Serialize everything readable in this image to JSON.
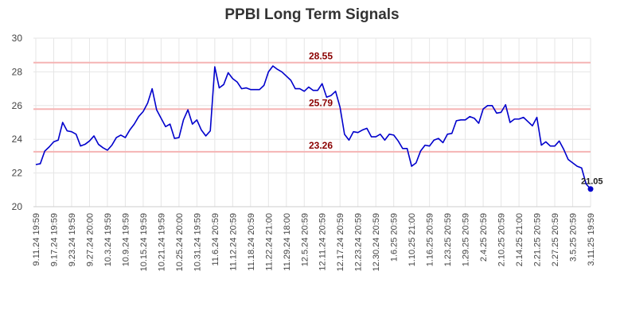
{
  "chart_data": {
    "type": "line",
    "title": "PPBI Long Term Signals",
    "ylim": [
      20,
      30
    ],
    "yticks": [
      20,
      22,
      24,
      26,
      28,
      30
    ],
    "grid": true,
    "xtick_labels": [
      "9.11.24 19:59",
      "9.17.24 19:59",
      "9.23.24 19:59",
      "9.27.24 20:00",
      "10.3.24 19:59",
      "10.9.24 19:59",
      "10.15.24 19:59",
      "10.21.24 19:59",
      "10.25.24 20:00",
      "10.31.24 19:59",
      "11.6.24 20:59",
      "11.12.24 20:59",
      "11.18.24 20:59",
      "11.22.24 21:00",
      "11.29.24 18:00",
      "12.5.24 20:59",
      "12.11.24 20:59",
      "12.17.24 20:59",
      "12.23.24 20:59",
      "12.30.24 20:59",
      "1.6.25 20:59",
      "1.10.25 21:00",
      "1.16.25 20:59",
      "1.23.25 20:59",
      "1.29.25 20:59",
      "2.4.25 20:59",
      "2.10.25 20:59",
      "2.14.25 21:00",
      "2.21.25 20:59",
      "2.27.25 20:59",
      "3.5.25 20:59",
      "3.11.25 19:59"
    ],
    "reference_lines": [
      {
        "label": "28.55",
        "value": 28.55
      },
      {
        "label": "25.79",
        "value": 25.79
      },
      {
        "label": "23.26",
        "value": 23.26
      }
    ],
    "last_value_label": "21.05",
    "series": [
      {
        "color": "#0000cc",
        "values": [
          22.5,
          22.55,
          23.3,
          23.55,
          23.85,
          23.95,
          25.0,
          24.5,
          24.45,
          24.3,
          23.6,
          23.7,
          23.9,
          24.2,
          23.7,
          23.5,
          23.35,
          23.65,
          24.1,
          24.25,
          24.1,
          24.55,
          24.9,
          25.35,
          25.65,
          26.15,
          27.0,
          25.75,
          25.25,
          24.75,
          24.9,
          24.05,
          24.1,
          25.15,
          25.75,
          24.9,
          25.15,
          24.55,
          24.2,
          24.5,
          28.3,
          27.05,
          27.25,
          27.95,
          27.6,
          27.4,
          27.0,
          27.05,
          26.95,
          26.95,
          26.95,
          27.2,
          28.0,
          28.35,
          28.15,
          28.0,
          27.75,
          27.5,
          27.0,
          27.0,
          26.85,
          27.1,
          26.9,
          26.9,
          27.3,
          26.5,
          26.6,
          26.85,
          25.9,
          24.3,
          23.95,
          24.45,
          24.4,
          24.55,
          24.65,
          24.15,
          24.15,
          24.3,
          23.95,
          24.3,
          24.25,
          23.9,
          23.45,
          23.45,
          22.4,
          22.6,
          23.3,
          23.65,
          23.6,
          23.95,
          24.05,
          23.8,
          24.3,
          24.35,
          25.1,
          25.15,
          25.15,
          25.35,
          25.25,
          24.95,
          25.8,
          26.0,
          26.0,
          25.55,
          25.6,
          26.05,
          25.0,
          25.2,
          25.2,
          25.3,
          25.05,
          24.8,
          25.3,
          23.65,
          23.85,
          23.6,
          23.6,
          23.9,
          23.4,
          22.8,
          22.6,
          22.4,
          22.3,
          21.35,
          21.05
        ]
      }
    ]
  }
}
